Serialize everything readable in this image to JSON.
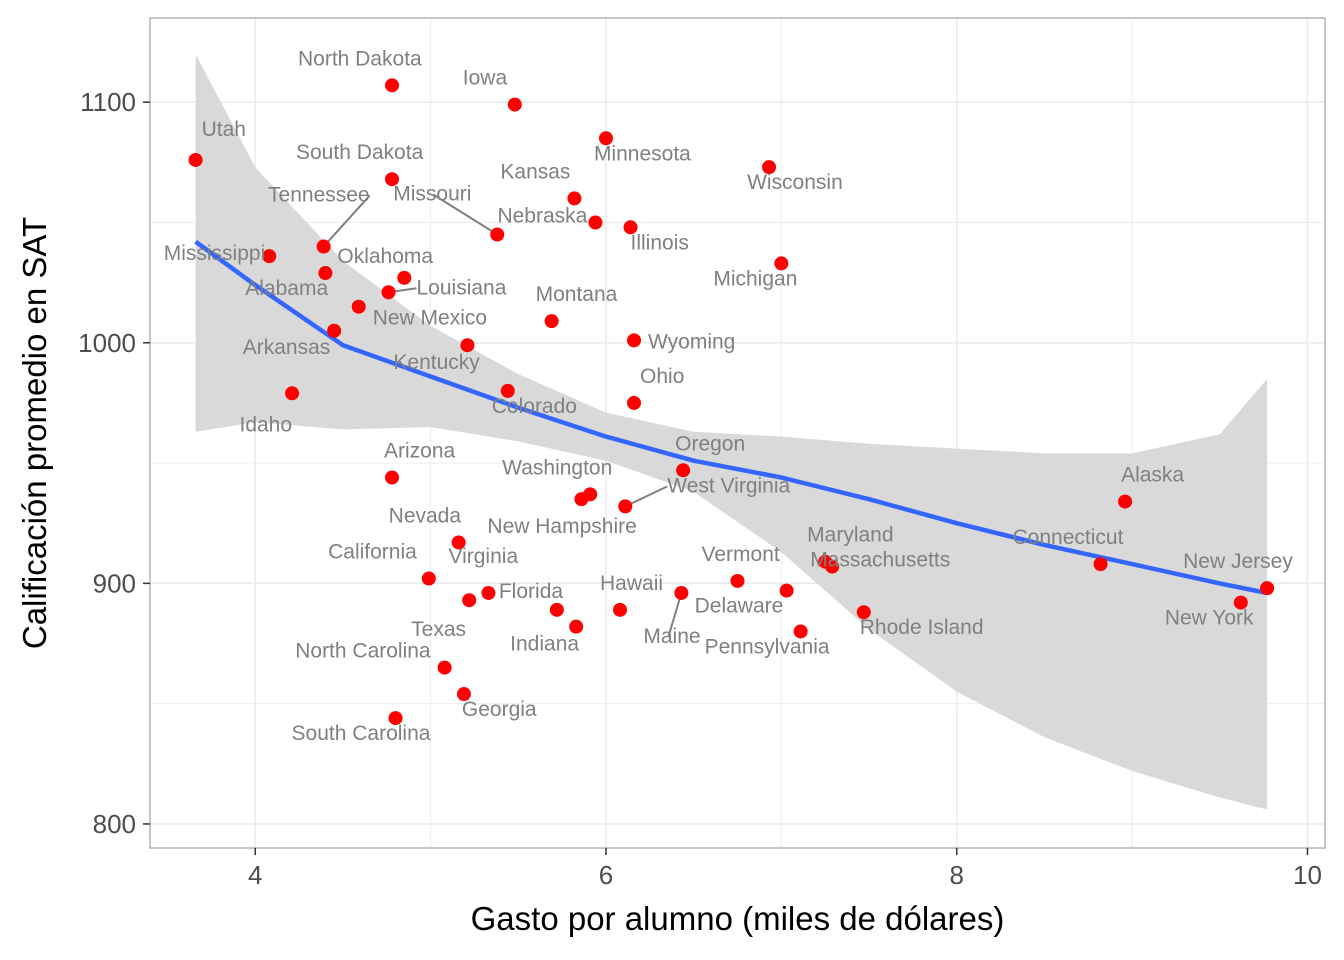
{
  "chart_data": {
    "type": "scatter",
    "title": "",
    "xlabel": "Gasto por alumno (miles de dólares)",
    "ylabel": "Calificación promedio en SAT",
    "xlim": [
      3.4,
      10.1
    ],
    "ylim": [
      790,
      1135
    ],
    "xticks": [
      4,
      6,
      8,
      10
    ],
    "yticks": [
      800,
      900,
      1000,
      1100
    ],
    "grid": true,
    "legend": "none",
    "colors": {
      "points": "#ff0000",
      "smooth_line": "#3366ff",
      "ribbon": "#d9d9d9",
      "labels": "#808080",
      "grid": "#ebebeb",
      "panel_border": "#b3b3b3"
    },
    "points": [
      {
        "label": "Utah",
        "x": 3.66,
        "y": 1076
      },
      {
        "label": "Mississippi",
        "x": 4.08,
        "y": 1036
      },
      {
        "label": "Idaho",
        "x": 4.21,
        "y": 979
      },
      {
        "label": "Tennessee",
        "x": 4.39,
        "y": 1040
      },
      {
        "label": "Oklahoma",
        "x": 4.4,
        "y": 1029
      },
      {
        "label": "Alabama",
        "x": 4.45,
        "y": 1005
      },
      {
        "label": "New Mexico",
        "x": 4.59,
        "y": 1015
      },
      {
        "label": "South Dakota",
        "x": 4.78,
        "y": 1068
      },
      {
        "label": "North Dakota",
        "x": 4.78,
        "y": 1107
      },
      {
        "label": "Arizona",
        "x": 4.78,
        "y": 944
      },
      {
        "label": "Louisiana",
        "x": 4.76,
        "y": 1021
      },
      {
        "label": "South Carolina",
        "x": 4.8,
        "y": 844
      },
      {
        "label": "Arkansas",
        "x": 4.85,
        "y": 1027
      },
      {
        "label": "California",
        "x": 4.99,
        "y": 902
      },
      {
        "label": "North Carolina",
        "x": 5.08,
        "y": 865
      },
      {
        "label": "Nevada",
        "x": 5.16,
        "y": 917
      },
      {
        "label": "Georgia",
        "x": 5.19,
        "y": 854
      },
      {
        "label": "Kentucky",
        "x": 5.21,
        "y": 999
      },
      {
        "label": "Texas",
        "x": 5.22,
        "y": 893
      },
      {
        "label": "Virginia",
        "x": 5.33,
        "y": 896
      },
      {
        "label": "Missouri",
        "x": 5.38,
        "y": 1045
      },
      {
        "label": "Colorado",
        "x": 5.44,
        "y": 980
      },
      {
        "label": "Iowa",
        "x": 5.48,
        "y": 1099
      },
      {
        "label": "Montana",
        "x": 5.69,
        "y": 1009
      },
      {
        "label": "Florida",
        "x": 5.72,
        "y": 889
      },
      {
        "label": "Indiana",
        "x": 5.83,
        "y": 882
      },
      {
        "label": "Kansas",
        "x": 5.82,
        "y": 1060
      },
      {
        "label": "New Hampshire",
        "x": 5.86,
        "y": 935
      },
      {
        "label": "Washington",
        "x": 5.91,
        "y": 937
      },
      {
        "label": "Nebraska",
        "x": 5.94,
        "y": 1050
      },
      {
        "label": "Minnesota",
        "x": 6.0,
        "y": 1085
      },
      {
        "label": "Hawaii",
        "x": 6.08,
        "y": 889
      },
      {
        "label": "West Virginia",
        "x": 6.11,
        "y": 932
      },
      {
        "label": "Illinois",
        "x": 6.14,
        "y": 1048
      },
      {
        "label": "Wyoming",
        "x": 6.16,
        "y": 1001
      },
      {
        "label": "Ohio",
        "x": 6.16,
        "y": 975
      },
      {
        "label": "Maine",
        "x": 6.43,
        "y": 896
      },
      {
        "label": "Oregon",
        "x": 6.44,
        "y": 947
      },
      {
        "label": "Vermont",
        "x": 6.75,
        "y": 901
      },
      {
        "label": "Wisconsin",
        "x": 6.93,
        "y": 1073
      },
      {
        "label": "Michigan",
        "x": 7.0,
        "y": 1033
      },
      {
        "label": "Delaware",
        "x": 7.03,
        "y": 897
      },
      {
        "label": "Pennsylvania",
        "x": 7.11,
        "y": 880
      },
      {
        "label": "Maryland",
        "x": 7.25,
        "y": 909
      },
      {
        "label": "Massachusetts",
        "x": 7.29,
        "y": 907
      },
      {
        "label": "Rhode Island",
        "x": 7.47,
        "y": 888
      },
      {
        "label": "Connecticut",
        "x": 8.82,
        "y": 908
      },
      {
        "label": "Alaska",
        "x": 8.96,
        "y": 934
      },
      {
        "label": "New York",
        "x": 9.62,
        "y": 892
      },
      {
        "label": "New Jersey",
        "x": 9.77,
        "y": 898
      }
    ],
    "smooth": {
      "method": "loess",
      "x": [
        3.66,
        4.0,
        4.5,
        5.0,
        5.5,
        6.0,
        6.5,
        7.0,
        7.5,
        8.0,
        8.5,
        9.0,
        9.5,
        9.77
      ],
      "y": [
        1042,
        1024,
        999,
        986,
        973,
        961,
        951,
        944,
        935,
        925,
        916,
        908,
        900,
        896
      ],
      "y_lower": [
        963,
        967,
        964,
        965,
        959,
        951,
        938,
        913,
        881,
        855,
        836,
        822,
        811,
        806
      ],
      "y_upper": [
        1120,
        1073,
        1034,
        1007,
        987,
        971,
        963,
        961,
        958,
        956,
        954,
        954,
        962,
        985
      ]
    }
  }
}
